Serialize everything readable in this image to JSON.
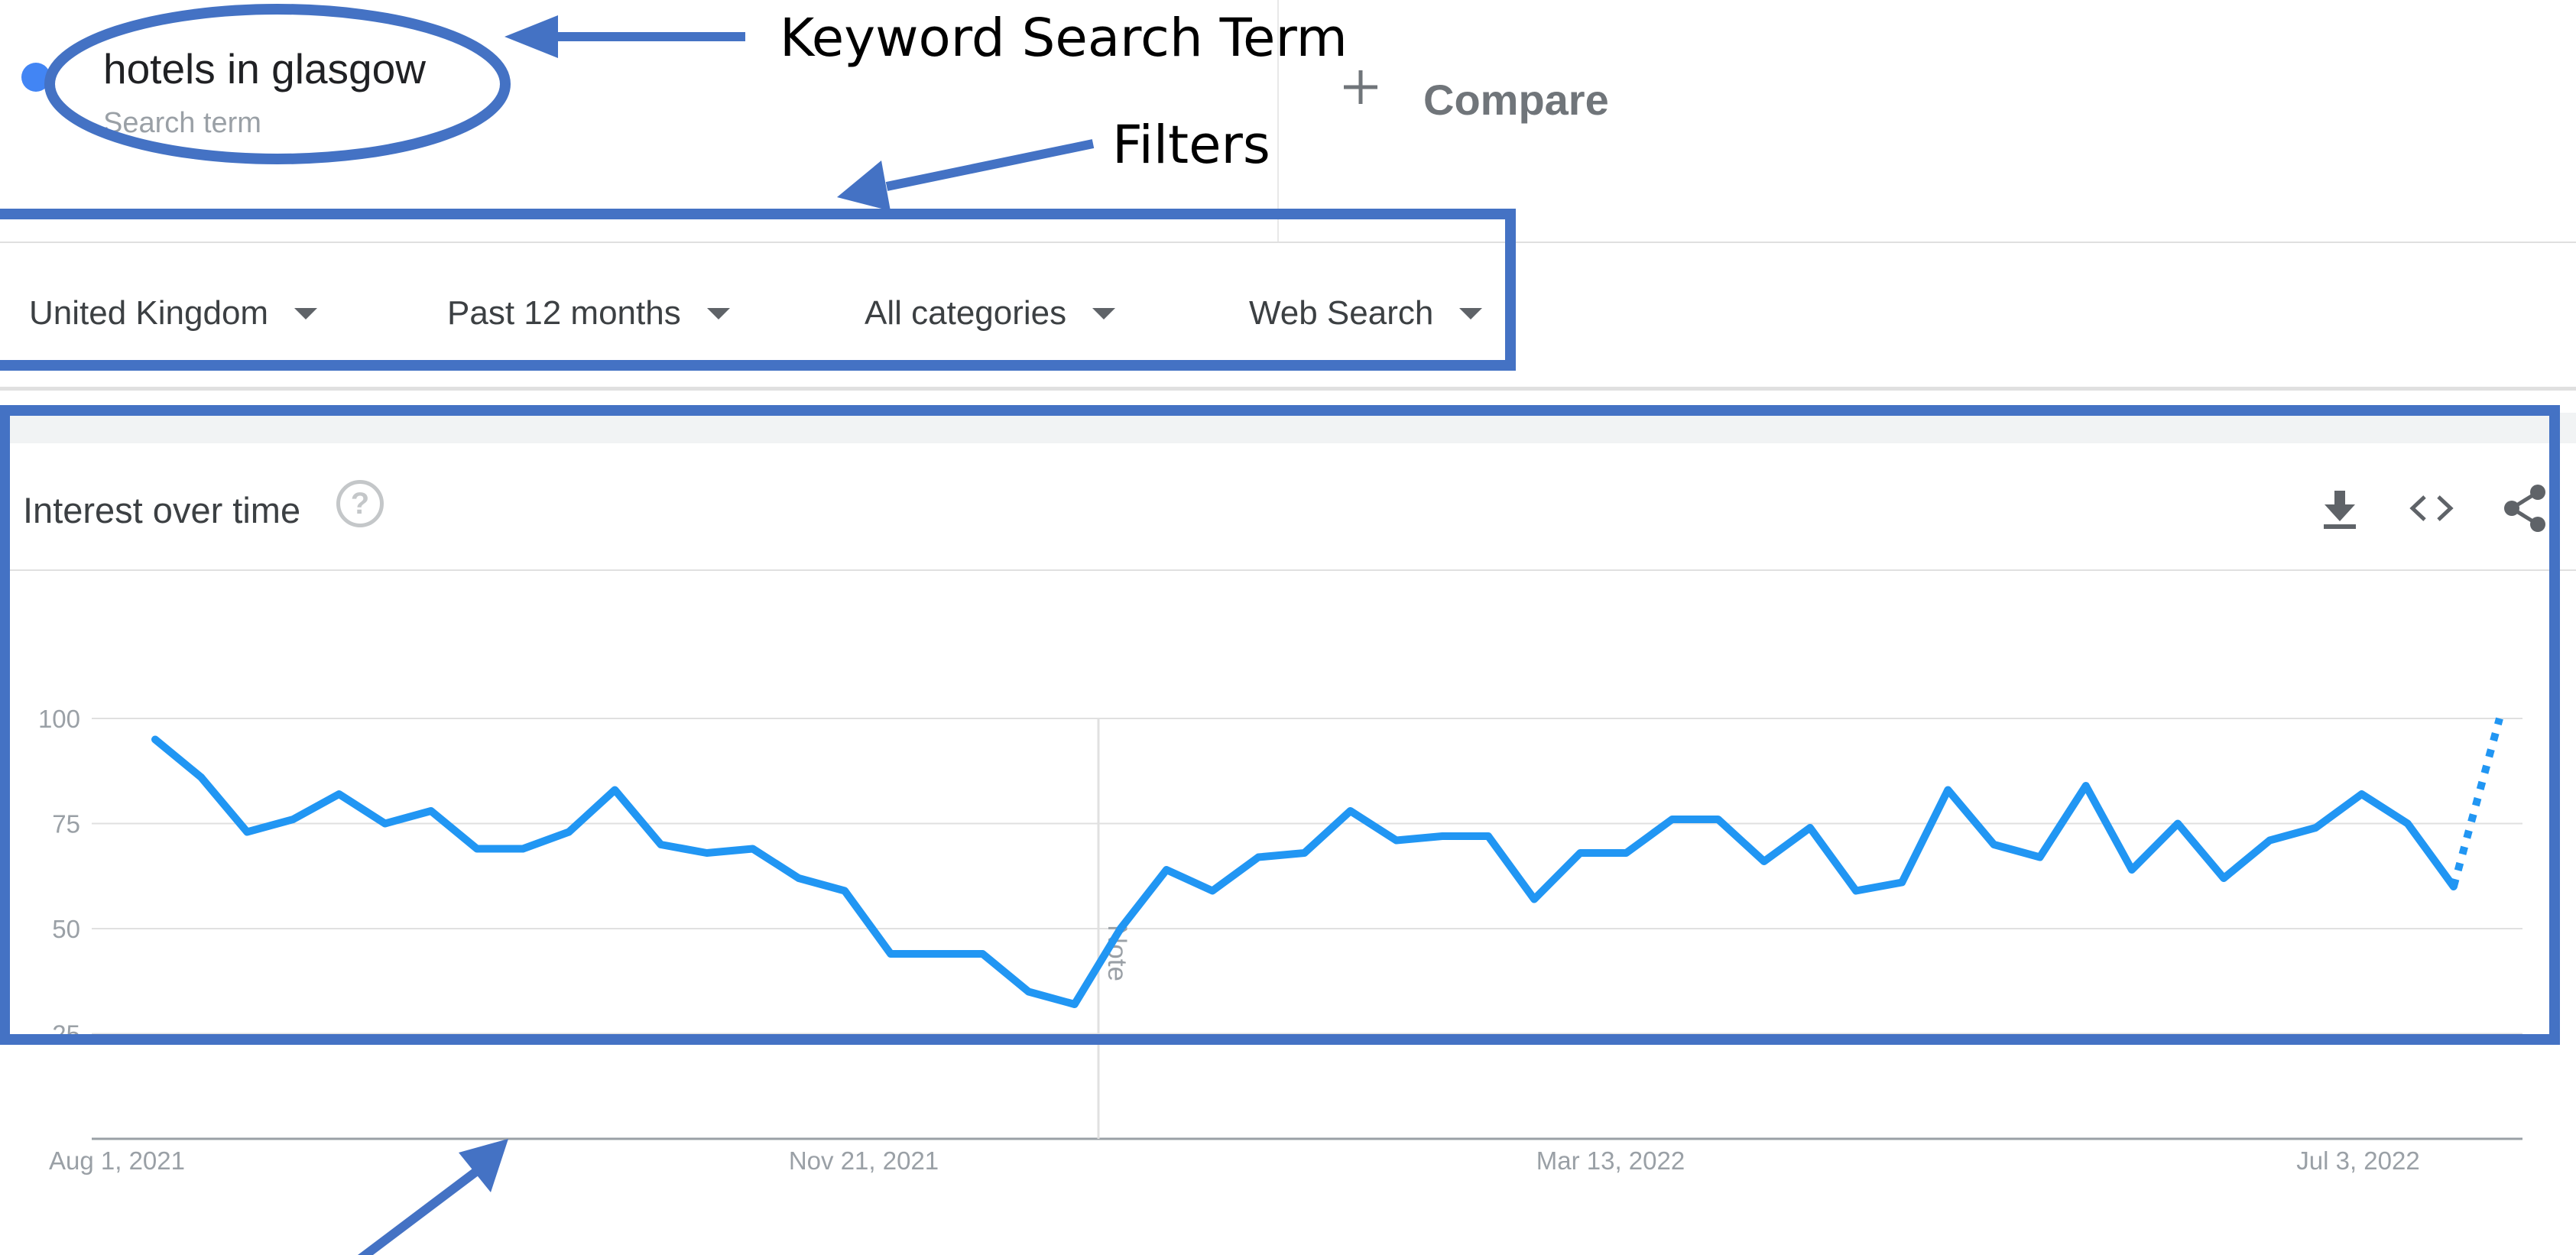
{
  "search_term": {
    "term": "hotels in glasgow",
    "subtitle": "Search term",
    "color": "#4285f4"
  },
  "compare": {
    "label": "Compare"
  },
  "filters": [
    {
      "label": "United Kingdom"
    },
    {
      "label": "Past 12 months"
    },
    {
      "label": "All categories"
    },
    {
      "label": "Web Search"
    }
  ],
  "card": {
    "title": "Interest over time",
    "help_icon": "help-circle-icon",
    "actions": [
      "download-icon",
      "embed-code-icon",
      "share-icon"
    ]
  },
  "annotations": {
    "keyword_label": "Keyword Search Term",
    "filters_label": "Filters",
    "color": "#4472c4"
  },
  "chart_data": {
    "type": "line",
    "x_start": "Aug 1, 2021",
    "x_ticks": [
      "Aug 1, 2021",
      "Nov 21, 2021",
      "Mar 13, 2022",
      "Jul 3, 2022"
    ],
    "y_ticks": [
      25,
      50,
      75,
      100
    ],
    "ylim": [
      0,
      100
    ],
    "grid": true,
    "note_label": "Note",
    "series": [
      {
        "color": "#2196f3",
        "values": [
          95,
          86,
          73,
          76,
          82,
          75,
          78,
          69,
          69,
          73,
          83,
          70,
          68,
          69,
          62,
          59,
          44,
          44,
          44,
          35,
          32,
          50,
          64,
          59,
          67,
          68,
          78,
          71,
          72,
          72,
          57,
          68,
          68,
          76,
          76,
          66,
          74,
          59,
          61,
          83,
          70,
          67,
          84,
          64,
          75,
          62,
          71,
          74,
          82,
          75,
          60,
          100
        ],
        "partial_last": true
      }
    ]
  }
}
